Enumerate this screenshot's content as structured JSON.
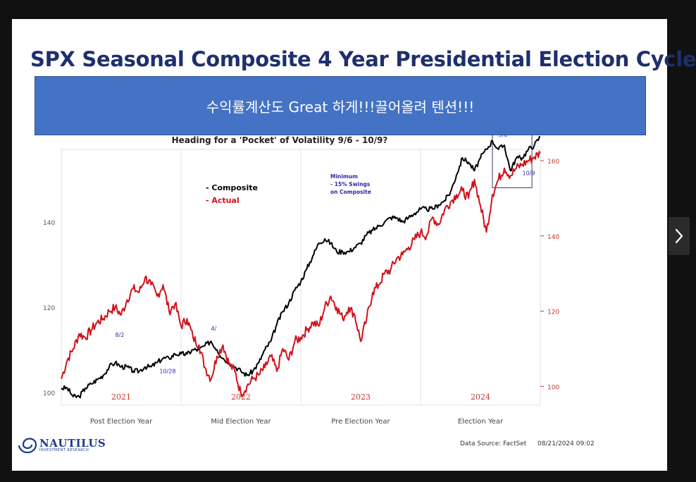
{
  "slide": {
    "title": "SPX Seasonal Composite 4 Year Presidential Election Cycle",
    "banner_text": "수익률계산도 Great 하게!!!끌어올려 텐션!!!",
    "footer": {
      "logo_word": "NAUTILUS",
      "logo_sub": "INVESTMENT RESEARCH",
      "source": "Data Source: FactSet",
      "source_date": "08/21/2024 09:02"
    }
  },
  "colors": {
    "composite": "#000000",
    "actual": "#d0121b",
    "title": "#1e2f6e",
    "banner": "#4472c4",
    "annotation": "#2a2aa8"
  },
  "icons": {
    "next": "chevron-right-icon",
    "logo": "nautilus-swirl-icon"
  },
  "chart_data": {
    "type": "line",
    "subtitle": "Heading for  a 'Pocket' of Volatility 9/6 - 10/9?",
    "legend": [
      "- Composite",
      "- Actual"
    ],
    "legend_placement": "top-left",
    "annotation_note": [
      "Minimum",
      "- 15% Swings",
      "on Composite"
    ],
    "year_labels": [
      "2021",
      "2022",
      "2023",
      "2024"
    ],
    "phase_labels": [
      "Post Election Year",
      "Mid Election Year",
      "Pre Election Year",
      "Election Year"
    ],
    "left_axis": {
      "ticks": [
        100,
        120,
        140
      ],
      "range": [
        97,
        157
      ]
    },
    "right_axis": {
      "ticks": [
        100,
        120,
        140,
        160
      ],
      "range": [
        95,
        163
      ]
    },
    "grid": false,
    "point_labels": [
      {
        "text": "8/2",
        "x": 0.45,
        "y": 113
      },
      {
        "text": "10/28",
        "x": 0.82,
        "y": 104.5
      },
      {
        "text": "4/",
        "x": 1.25,
        "y": 114.5
      },
      {
        "text": "9/6",
        "x": 3.65,
        "y": 160
      },
      {
        "text": "10/9",
        "x": 3.85,
        "y": 151
      }
    ],
    "box": {
      "x": [
        3.6,
        3.93
      ],
      "y": [
        148,
        161
      ]
    },
    "series": [
      {
        "name": "Composite",
        "axis": "left",
        "x": [
          0,
          0.05,
          0.1,
          0.15,
          0.2,
          0.25,
          0.3,
          0.35,
          0.4,
          0.45,
          0.5,
          0.55,
          0.6,
          0.65,
          0.7,
          0.75,
          0.8,
          0.85,
          0.9,
          0.95,
          1.0,
          1.05,
          1.1,
          1.15,
          1.2,
          1.25,
          1.3,
          1.35,
          1.4,
          1.45,
          1.5,
          1.55,
          1.6,
          1.65,
          1.7,
          1.75,
          1.8,
          1.85,
          1.9,
          1.95,
          2.0,
          2.05,
          2.1,
          2.15,
          2.2,
          2.25,
          2.3,
          2.35,
          2.4,
          2.45,
          2.5,
          2.55,
          2.6,
          2.65,
          2.7,
          2.75,
          2.8,
          2.85,
          2.9,
          2.95,
          3.0,
          3.05,
          3.1,
          3.15,
          3.2,
          3.25,
          3.3,
          3.35,
          3.4,
          3.45,
          3.5,
          3.55,
          3.6,
          3.65,
          3.7,
          3.75,
          3.8,
          3.85,
          3.9,
          3.95,
          4.0
        ],
        "y": [
          101,
          101,
          99,
          99,
          101,
          102,
          103,
          104,
          106,
          107,
          106,
          106,
          105,
          105,
          106,
          106,
          107,
          108,
          108,
          109,
          109,
          109,
          110,
          110,
          111,
          112,
          110,
          108,
          107,
          106,
          105,
          104,
          105,
          107,
          110,
          112,
          116,
          119,
          121,
          124,
          126,
          129,
          132,
          135,
          136,
          135,
          133,
          133,
          133,
          134,
          135,
          137,
          138,
          139,
          140,
          141,
          141,
          140,
          141,
          142,
          143,
          143,
          143,
          144,
          145,
          147,
          151,
          155,
          154,
          152,
          155,
          157,
          159,
          157,
          158,
          152,
          155,
          155,
          157,
          158,
          160
        ]
      },
      {
        "name": "Actual",
        "axis": "right",
        "x": [
          0,
          0.05,
          0.1,
          0.15,
          0.2,
          0.25,
          0.3,
          0.35,
          0.4,
          0.45,
          0.5,
          0.55,
          0.6,
          0.65,
          0.7,
          0.75,
          0.8,
          0.85,
          0.9,
          0.95,
          1.0,
          1.05,
          1.1,
          1.15,
          1.2,
          1.25,
          1.3,
          1.35,
          1.4,
          1.45,
          1.5,
          1.55,
          1.6,
          1.65,
          1.7,
          1.75,
          1.8,
          1.85,
          1.9,
          1.95,
          2.0,
          2.05,
          2.1,
          2.15,
          2.2,
          2.25,
          2.3,
          2.35,
          2.4,
          2.45,
          2.5,
          2.55,
          2.6,
          2.65,
          2.7,
          2.75,
          2.8,
          2.85,
          2.9,
          2.95,
          3.0,
          3.05,
          3.1,
          3.15,
          3.2,
          3.25,
          3.3,
          3.35,
          3.4,
          3.45,
          3.5,
          3.55,
          3.6,
          3.65,
          3.7,
          3.75,
          3.8,
          3.85,
          3.9,
          3.95,
          4.0
        ],
        "y": [
          102,
          107,
          110,
          114,
          113,
          115,
          117,
          118,
          120,
          121,
          119,
          123,
          126,
          125,
          129,
          127,
          124,
          127,
          120,
          122,
          116,
          118,
          113,
          111,
          105,
          102,
          108,
          111,
          106,
          104,
          98,
          100,
          102,
          103,
          105,
          108,
          104,
          110,
          107,
          112,
          113,
          115,
          117,
          116,
          121,
          124,
          121,
          118,
          121,
          119,
          112,
          118,
          125,
          127,
          130,
          131,
          134,
          135,
          137,
          139,
          141,
          140,
          145,
          143,
          147,
          149,
          151,
          152,
          150,
          155,
          148,
          141,
          151,
          155,
          158,
          156,
          158,
          159,
          160,
          161,
          162
        ]
      }
    ]
  }
}
